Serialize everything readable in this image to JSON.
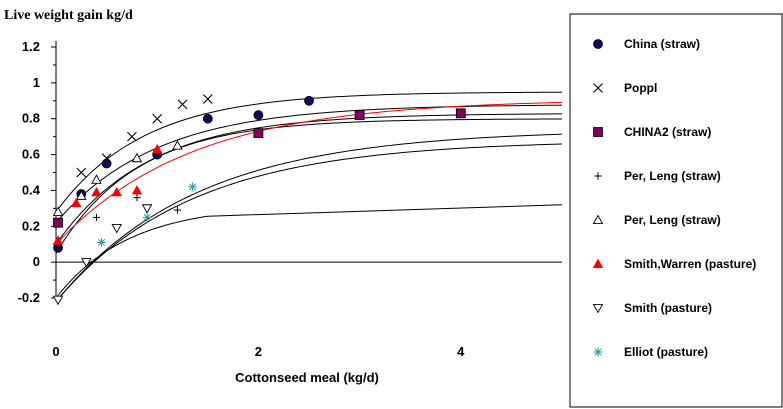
{
  "chart_data": {
    "type": "scatter",
    "ylabel": "Live weight gain kg/d",
    "xlabel": "Cottonseed meal (kg/d)",
    "xlim": [
      0,
      5
    ],
    "ylim": [
      -0.2,
      1.2
    ],
    "xticks": [
      0,
      2,
      4
    ],
    "xtick_labels": [
      "0",
      "2",
      "4"
    ],
    "yticks": [
      -0.2,
      0,
      0.2,
      0.4,
      0.6,
      0.8,
      1,
      1.2
    ],
    "ytick_labels": [
      "-0.2",
      "0",
      "0.2",
      "0.4",
      "0.6",
      "0.8",
      "1",
      "1.2"
    ],
    "legend_position": "right",
    "series": [
      {
        "name": "China (straw)",
        "marker": "circle",
        "color": "#0b0b5e",
        "points": [
          [
            0.02,
            0.08
          ],
          [
            0.25,
            0.38
          ],
          [
            0.5,
            0.55
          ],
          [
            1.0,
            0.6
          ],
          [
            1.5,
            0.8
          ],
          [
            2.0,
            0.82
          ],
          [
            2.5,
            0.9
          ]
        ]
      },
      {
        "name": "Poppl",
        "marker": "x",
        "color": "#000000",
        "points": [
          [
            0.02,
            0.22
          ],
          [
            0.25,
            0.5
          ],
          [
            0.5,
            0.58
          ],
          [
            0.75,
            0.7
          ],
          [
            1.0,
            0.8
          ],
          [
            1.25,
            0.88
          ],
          [
            1.5,
            0.91
          ]
        ]
      },
      {
        "name": "CHINA2 (straw)",
        "marker": "square",
        "color": "#800060",
        "points": [
          [
            0.02,
            0.22
          ],
          [
            2.0,
            0.72
          ],
          [
            3.0,
            0.82
          ],
          [
            4.0,
            0.83
          ]
        ]
      },
      {
        "name": "Per, Leng (straw)",
        "marker": "plus",
        "color": "#000000",
        "points": [
          [
            0.4,
            0.25
          ],
          [
            0.8,
            0.36
          ],
          [
            1.2,
            0.29
          ]
        ]
      },
      {
        "name": "Per, Leng (straw)",
        "marker": "triangle-up-open",
        "color": "#000000",
        "points": [
          [
            0.02,
            0.28
          ],
          [
            0.25,
            0.37
          ],
          [
            0.4,
            0.46
          ],
          [
            0.8,
            0.58
          ],
          [
            1.2,
            0.65
          ]
        ]
      },
      {
        "name": "Smith,Warren (pasture)",
        "marker": "triangle-up",
        "color": "#ff0000",
        "points": [
          [
            0.02,
            0.12
          ],
          [
            0.2,
            0.33
          ],
          [
            0.4,
            0.39
          ],
          [
            0.6,
            0.39
          ],
          [
            0.8,
            0.4
          ],
          [
            1.0,
            0.63
          ]
        ]
      },
      {
        "name": "Smith (pasture)",
        "marker": "triangle-down-open",
        "color": "#000000",
        "points": [
          [
            0.02,
            -0.21
          ],
          [
            0.3,
            0.0
          ],
          [
            0.6,
            0.19
          ],
          [
            0.9,
            0.3
          ]
        ]
      },
      {
        "name": "Elliot (pasture)",
        "marker": "asterisk",
        "color": "#2a9a9a",
        "points": [
          [
            0.45,
            0.11
          ],
          [
            0.9,
            0.25
          ],
          [
            1.35,
            0.42
          ]
        ]
      }
    ],
    "curves": [
      {
        "color": "#000000",
        "kind": "exp",
        "a": 0.28,
        "b": 0.95,
        "k": 1.15
      },
      {
        "color": "#000000",
        "kind": "exp",
        "a": 0.22,
        "b": 0.88,
        "k": 1.0
      },
      {
        "color": "#000000",
        "kind": "exp",
        "a": 0.1,
        "b": 0.83,
        "k": 1.1
      },
      {
        "color": "#000000",
        "kind": "exp",
        "a": 0.05,
        "b": 0.8,
        "k": 1.25
      },
      {
        "color": "#ff0000",
        "kind": "exp",
        "a": 0.1,
        "b": 0.91,
        "k": 0.75
      },
      {
        "color": "#000000",
        "kind": "exp",
        "a": -0.22,
        "b": 0.74,
        "k": 0.72
      },
      {
        "color": "#000000",
        "kind": "exp",
        "a": -0.22,
        "b": 0.68,
        "k": 0.75
      },
      {
        "color": "#000000",
        "kind": "exp",
        "a": -0.2,
        "b": 0.32,
        "k": 1.4,
        "xmax": 1.5,
        "flat_to": 5,
        "flat_y": 0.32
      }
    ]
  }
}
